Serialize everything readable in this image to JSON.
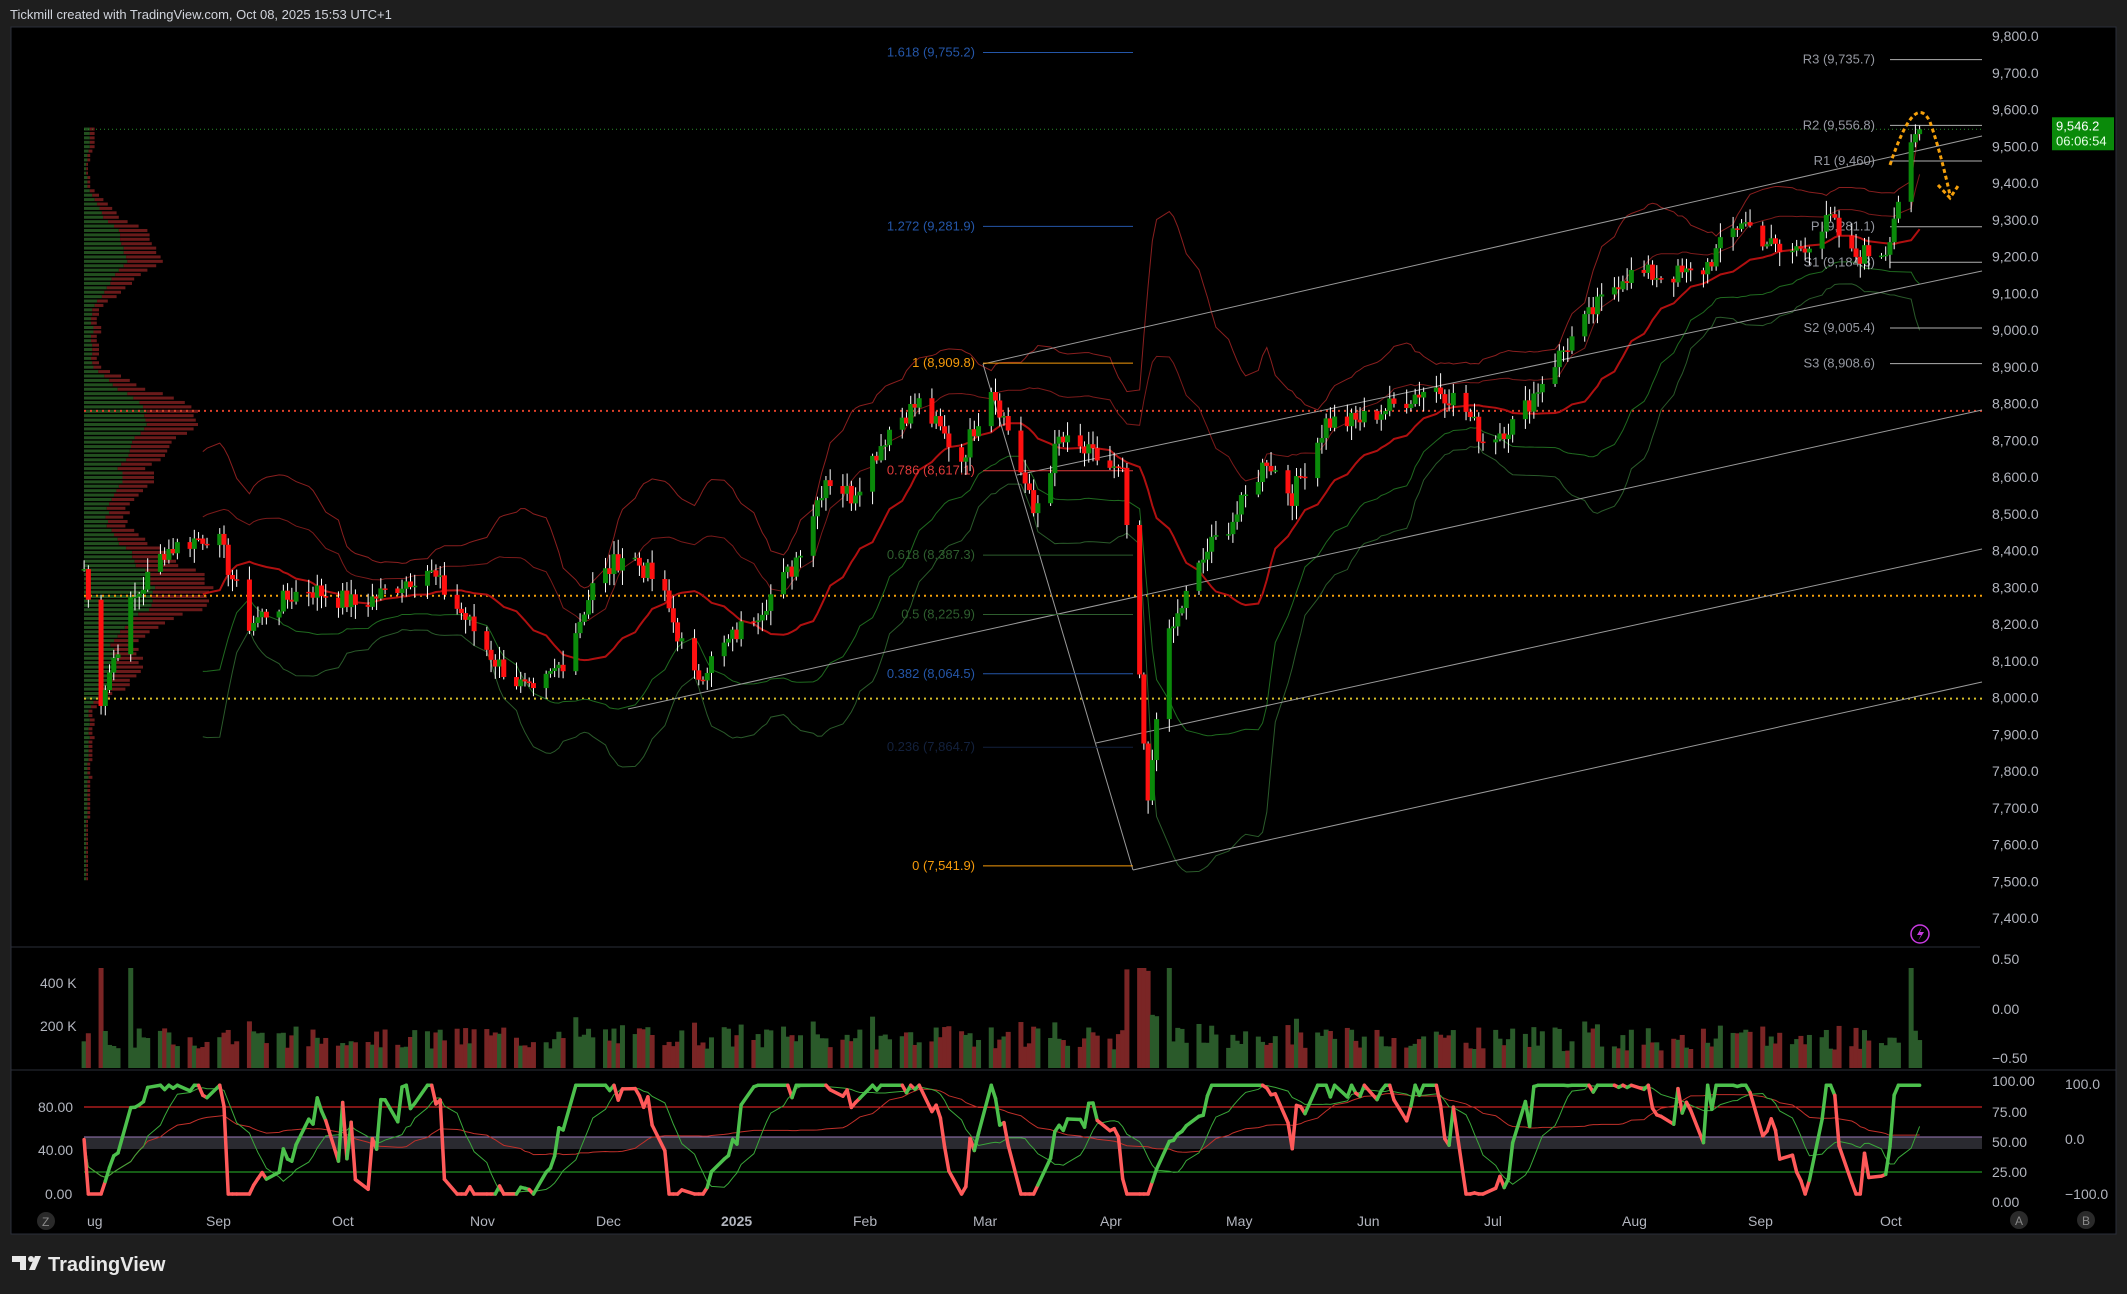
{
  "header": {
    "title": "Tickmill created with TradingView.com, Oct 08, 2025 15:53 UTC+1"
  },
  "brand": {
    "logo_text": "TradingView"
  },
  "price_axis": {
    "labels": [
      "9,800.0",
      "9,700.0",
      "9,600.0",
      "9,500.0",
      "9,400.0",
      "9,300.0",
      "9,200.0",
      "9,100.0",
      "9,000.0",
      "8,900.0",
      "8,800.0",
      "8,700.0",
      "8,600.0",
      "8,500.0",
      "8,400.0",
      "8,300.0",
      "8,200.0",
      "8,100.0",
      "8,000.0",
      "7,900.0",
      "7,800.0",
      "7,700.0",
      "7,600.0",
      "7,500.0",
      "7,400.0"
    ]
  },
  "current_price": {
    "value": "9,546.2",
    "countdown": "06:06:54",
    "color": "#0a8a0a"
  },
  "fibonacci": [
    {
      "label": "1.618 (9,755.2)",
      "price": 9755.2,
      "color": "#2456a8"
    },
    {
      "label": "1.272 (9,281.9)",
      "price": 9281.9,
      "color": "#2456a8"
    },
    {
      "label": "1 (8,909.8)",
      "price": 8909.8,
      "color": "#f59a0b"
    },
    {
      "label": "0.786 (8,617.1)",
      "price": 8617.1,
      "color": "#e03a3a"
    },
    {
      "label": "0.618 (8,387.3)",
      "price": 8387.3,
      "color": "#2e5e2e"
    },
    {
      "label": "0.5 (8,225.9)",
      "price": 8225.9,
      "color": "#2e5e2e"
    },
    {
      "label": "0.382 (8,064.5)",
      "price": 8064.5,
      "color": "#2456a8"
    },
    {
      "label": "0.236 (7,864.7)",
      "price": 7864.7,
      "color": "#13213d"
    },
    {
      "label": "0 (7,541.9)",
      "price": 7541.9,
      "color": "#f59a0b"
    }
  ],
  "pivots": [
    {
      "label": "R3 (9,735.7)",
      "price": 9735.7
    },
    {
      "label": "R2 (9,556.8)",
      "price": 9556.8
    },
    {
      "label": "R1 (9,460)",
      "price": 9460
    },
    {
      "label": "P (9,281.1)",
      "price": 9281.1
    },
    {
      "label": "S1 (9,184.3)",
      "price": 9184.3
    },
    {
      "label": "S2 (9,005.4)",
      "price": 9005.4
    },
    {
      "label": "S3 (8,908.6)",
      "price": 8908.6
    }
  ],
  "time_axis": {
    "labels": [
      "ug",
      "Sep",
      "Oct",
      "Nov",
      "Dec",
      "2025",
      "Feb",
      "Mar",
      "Apr",
      "May",
      "Jun",
      "Jul",
      "Aug",
      "Sep",
      "Oct"
    ]
  },
  "volume_pane": {
    "left_labels": [
      "400 K",
      "200 K"
    ],
    "right_labels": [
      "0.50",
      "0.00",
      "−0.50"
    ]
  },
  "oscillator_pane": {
    "left_labels": [
      "80.00",
      "40.00",
      "0.00"
    ],
    "right_a_labels": [
      "100.00",
      "75.00",
      "50.00",
      "25.00",
      "0.00"
    ],
    "right_b_labels": [
      "100.0",
      "0.0",
      "−100.0"
    ]
  },
  "scale_buttons": {
    "z": "Z",
    "a": "A",
    "b": "B"
  },
  "colors": {
    "up": "#0a8a0a",
    "down": "#ff1010",
    "wick": "#ffffff",
    "background": "#000000"
  },
  "chart_data": {
    "type": "candlestick",
    "ylim": [
      7400,
      9800
    ],
    "last": 9546.2,
    "closes": [
      [
        "2024-08-01",
        8350
      ],
      [
        "2024-08-05",
        8000
      ],
      [
        "2024-08-12",
        8250
      ],
      [
        "2024-08-20",
        8400
      ],
      [
        "2024-09-01",
        8450
      ],
      [
        "2024-09-09",
        8200
      ],
      [
        "2024-09-22",
        8300
      ],
      [
        "2024-10-05",
        8250
      ],
      [
        "2024-10-21",
        8350
      ],
      [
        "2024-10-31",
        8200
      ],
      [
        "2024-11-06",
        8100
      ],
      [
        "2024-11-15",
        8000
      ],
      [
        "2024-11-22",
        8100
      ],
      [
        "2024-11-29",
        8300
      ],
      [
        "2024-12-07",
        8400
      ],
      [
        "2024-12-15",
        8300
      ],
      [
        "2024-12-23",
        8050
      ],
      [
        "2024-12-31",
        8150
      ],
      [
        "2025-01-08",
        8250
      ],
      [
        "2025-01-15",
        8350
      ],
      [
        "2025-01-23",
        8600
      ],
      [
        "2025-01-29",
        8550
      ],
      [
        "2025-02-08",
        8750
      ],
      [
        "2025-02-14",
        8800
      ],
      [
        "2025-02-24",
        8650
      ],
      [
        "2025-03-03",
        8850
      ],
      [
        "2025-03-08",
        8700
      ],
      [
        "2025-03-13",
        8500
      ],
      [
        "2025-03-19",
        8700
      ],
      [
        "2025-03-28",
        8650
      ],
      [
        "2025-04-03",
        8600
      ],
      [
        "2025-04-06",
        8200
      ],
      [
        "2025-04-09",
        7700
      ],
      [
        "2025-04-12",
        8100
      ],
      [
        "2025-04-17",
        8250
      ],
      [
        "2025-04-23",
        8400
      ],
      [
        "2025-04-30",
        8500
      ],
      [
        "2025-05-07",
        8650
      ],
      [
        "2025-05-13",
        8550
      ],
      [
        "2025-05-21",
        8750
      ],
      [
        "2025-05-28",
        8750
      ],
      [
        "2025-06-07",
        8800
      ],
      [
        "2025-06-15",
        8850
      ],
      [
        "2025-06-22",
        8800
      ],
      [
        "2025-06-27",
        8700
      ],
      [
        "2025-07-05",
        8750
      ],
      [
        "2025-07-13",
        8900
      ],
      [
        "2025-07-23",
        9050
      ],
      [
        "2025-07-30",
        9150
      ],
      [
        "2025-08-08",
        9150
      ],
      [
        "2025-08-17",
        9150
      ],
      [
        "2025-08-27",
        9300
      ],
      [
        "2025-09-06",
        9200
      ],
      [
        "2025-09-13",
        9250
      ],
      [
        "2025-09-17",
        9300
      ],
      [
        "2025-09-22",
        9200
      ],
      [
        "2025-09-30",
        9220
      ],
      [
        "2025-10-05",
        9450
      ],
      [
        "2025-10-08",
        9546.2
      ]
    ],
    "horizontal_levels": [
      8780,
      8277,
      7997
    ]
  }
}
